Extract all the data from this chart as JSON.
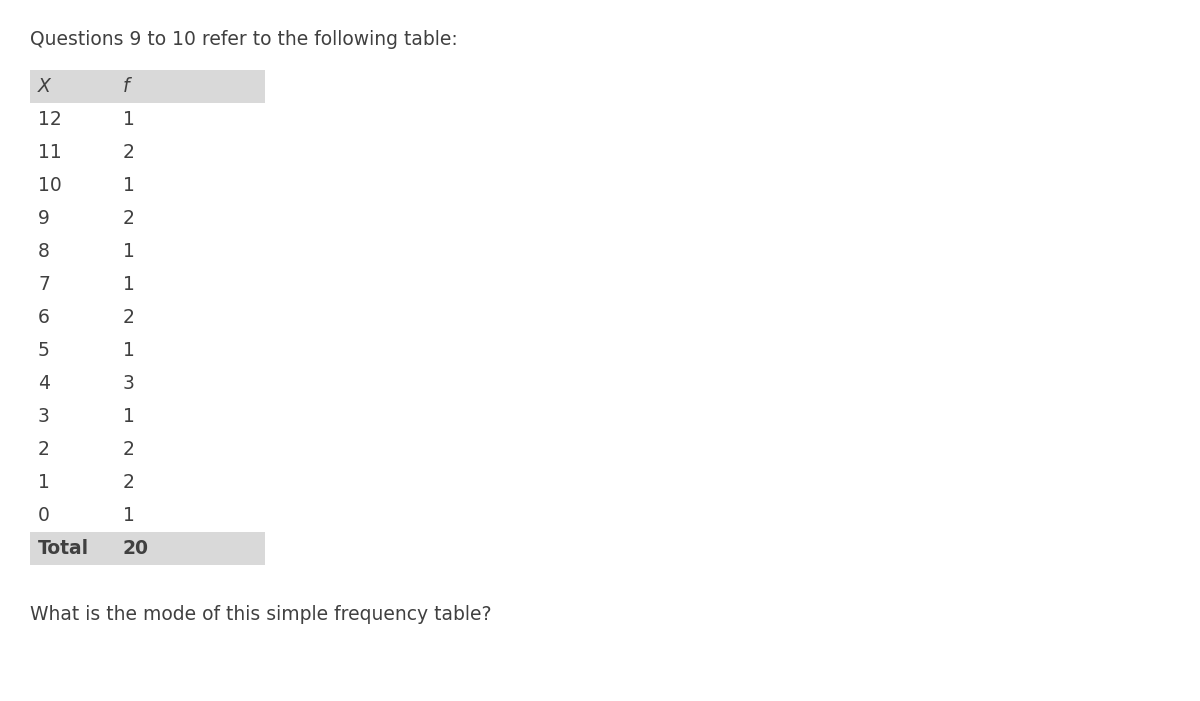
{
  "title": "Questions 9 to 10 refer to the following table:",
  "question": "What is the mode of this simple frequency table?",
  "col_headers": [
    "X",
    "f"
  ],
  "rows": [
    [
      "12",
      "1"
    ],
    [
      "11",
      "2"
    ],
    [
      "10",
      "1"
    ],
    [
      "9",
      "2"
    ],
    [
      "8",
      "1"
    ],
    [
      "7",
      "1"
    ],
    [
      "6",
      "2"
    ],
    [
      "5",
      "1"
    ],
    [
      "4",
      "3"
    ],
    [
      "3",
      "1"
    ],
    [
      "2",
      "2"
    ],
    [
      "1",
      "2"
    ],
    [
      "0",
      "1"
    ]
  ],
  "total_label": "Total",
  "total_value": "20",
  "header_bg": "#d9d9d9",
  "total_bg": "#d9d9d9",
  "row_bg": "#ffffff",
  "text_color": "#404040",
  "title_fontsize": 13.5,
  "table_fontsize": 13.5,
  "question_fontsize": 13.5,
  "fig_width": 12.0,
  "fig_height": 7.01,
  "dpi": 100
}
